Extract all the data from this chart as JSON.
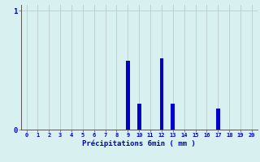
{
  "categories": [
    0,
    1,
    2,
    3,
    4,
    5,
    6,
    7,
    8,
    9,
    10,
    11,
    12,
    13,
    14,
    15,
    16,
    17,
    18,
    19,
    20
  ],
  "values": [
    0,
    0,
    0,
    0,
    0,
    0,
    0,
    0,
    0,
    0.58,
    0.22,
    0,
    0.6,
    0.22,
    0,
    0,
    0,
    0.18,
    0,
    0,
    0
  ],
  "bar_color": "#0000cc",
  "background_color": "#d8f0f0",
  "grid_color": "#bbcccc",
  "xlabel": "Précipitations 6min ( mm )",
  "xlabel_color": "#0000cc",
  "tick_color": "#0000cc",
  "bar_width": 0.35,
  "ylim": [
    0,
    1.05
  ],
  "xlim": [
    -0.5,
    20.5
  ],
  "figsize": [
    3.2,
    2.0
  ],
  "dpi": 100
}
